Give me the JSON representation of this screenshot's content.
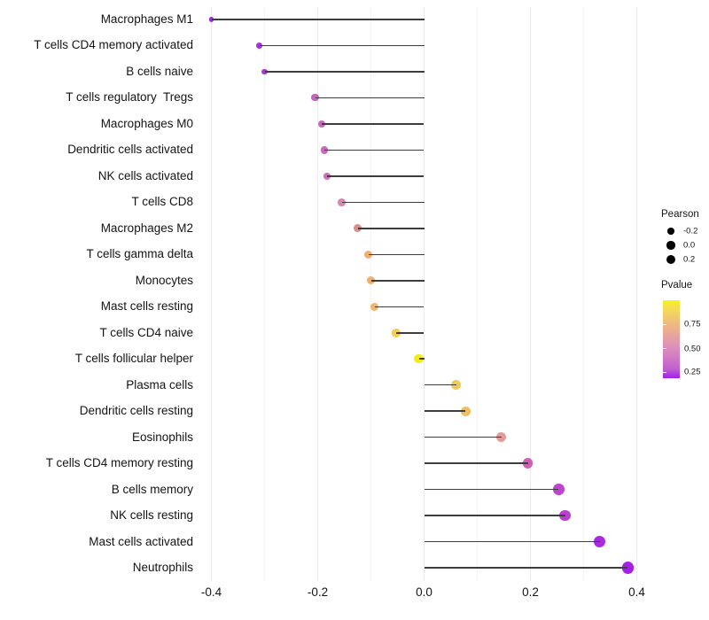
{
  "chart_data": {
    "type": "scatter",
    "subtype": "lollipop",
    "title": "",
    "xlabel": "",
    "ylabel": "",
    "xlim": [
      -0.43,
      0.43
    ],
    "grid": "vertical-only",
    "x_ticks": [
      {
        "label": "-0.4",
        "value": -0.4
      },
      {
        "label": "-0.2",
        "value": -0.2
      },
      {
        "label": "0.0",
        "value": 0.0
      },
      {
        "label": "0.2",
        "value": 0.2
      },
      {
        "label": "0.4",
        "value": 0.4
      }
    ],
    "minor_grid_values": [
      -0.3,
      -0.1,
      0.1,
      0.3
    ],
    "rows": [
      {
        "label": "Macrophages M1",
        "pearson": -0.4,
        "color": "#9c2bdb"
      },
      {
        "label": "T cells CD4 memory activated",
        "pearson": -0.31,
        "color": "#a134d6"
      },
      {
        "label": "B cells naive",
        "pearson": -0.3,
        "color": "#a83ad1"
      },
      {
        "label": "T cells regulatory  Tregs",
        "pearson": -0.205,
        "color": "#c763be"
      },
      {
        "label": "Macrophages M0",
        "pearson": -0.193,
        "color": "#c967bb"
      },
      {
        "label": "Dendritic cells activated",
        "pearson": -0.188,
        "color": "#ca6bba"
      },
      {
        "label": "NK cells activated",
        "pearson": -0.183,
        "color": "#cb6fb8"
      },
      {
        "label": "T cells CD8",
        "pearson": -0.155,
        "color": "#d787b0"
      },
      {
        "label": "Macrophages M2",
        "pearson": -0.125,
        "color": "#dd8b86"
      },
      {
        "label": "T cells gamma delta",
        "pearson": -0.105,
        "color": "#efaf74"
      },
      {
        "label": "Monocytes",
        "pearson": -0.1,
        "color": "#efb072"
      },
      {
        "label": "Mast cells resting",
        "pearson": -0.093,
        "color": "#f0b76b"
      },
      {
        "label": "T cells CD4 naive",
        "pearson": -0.052,
        "color": "#f1d04b"
      },
      {
        "label": "T cells follicular helper",
        "pearson": -0.01,
        "color": "#f2ee15"
      },
      {
        "label": "Plasma cells",
        "pearson": 0.06,
        "color": "#f1c956"
      },
      {
        "label": "Dendritic cells resting",
        "pearson": 0.078,
        "color": "#efbe61"
      },
      {
        "label": "Eosinophils",
        "pearson": 0.145,
        "color": "#e39a9a"
      },
      {
        "label": "T cells CD4 memory resting",
        "pearson": 0.195,
        "color": "#cf5fb4"
      },
      {
        "label": "B cells memory",
        "pearson": 0.253,
        "color": "#bc45cd"
      },
      {
        "label": "NK cells resting",
        "pearson": 0.265,
        "color": "#b93ed1"
      },
      {
        "label": "Mast cells activated",
        "pearson": 0.33,
        "color": "#a82be0"
      },
      {
        "label": "Neutrophils",
        "pearson": 0.383,
        "color": "#a320e4"
      }
    ],
    "legend": {
      "size": {
        "title": "Pearson",
        "entries": [
          {
            "label": "-0.2",
            "value": -0.2
          },
          {
            "label": "0.0",
            "value": 0.0
          },
          {
            "label": "0.2",
            "value": 0.2
          }
        ],
        "dot_color": "#000000"
      },
      "color": {
        "title": "Pvalue",
        "tick_labels": [
          "0.75",
          "0.50",
          "0.25"
        ],
        "gradient_top_color": "#f9f21e",
        "gradient_mid_color": "#de93b9",
        "gradient_bottom_color": "#a51cef"
      }
    },
    "stem_color": "#3d3d3d",
    "background_color": "#ffffff"
  }
}
